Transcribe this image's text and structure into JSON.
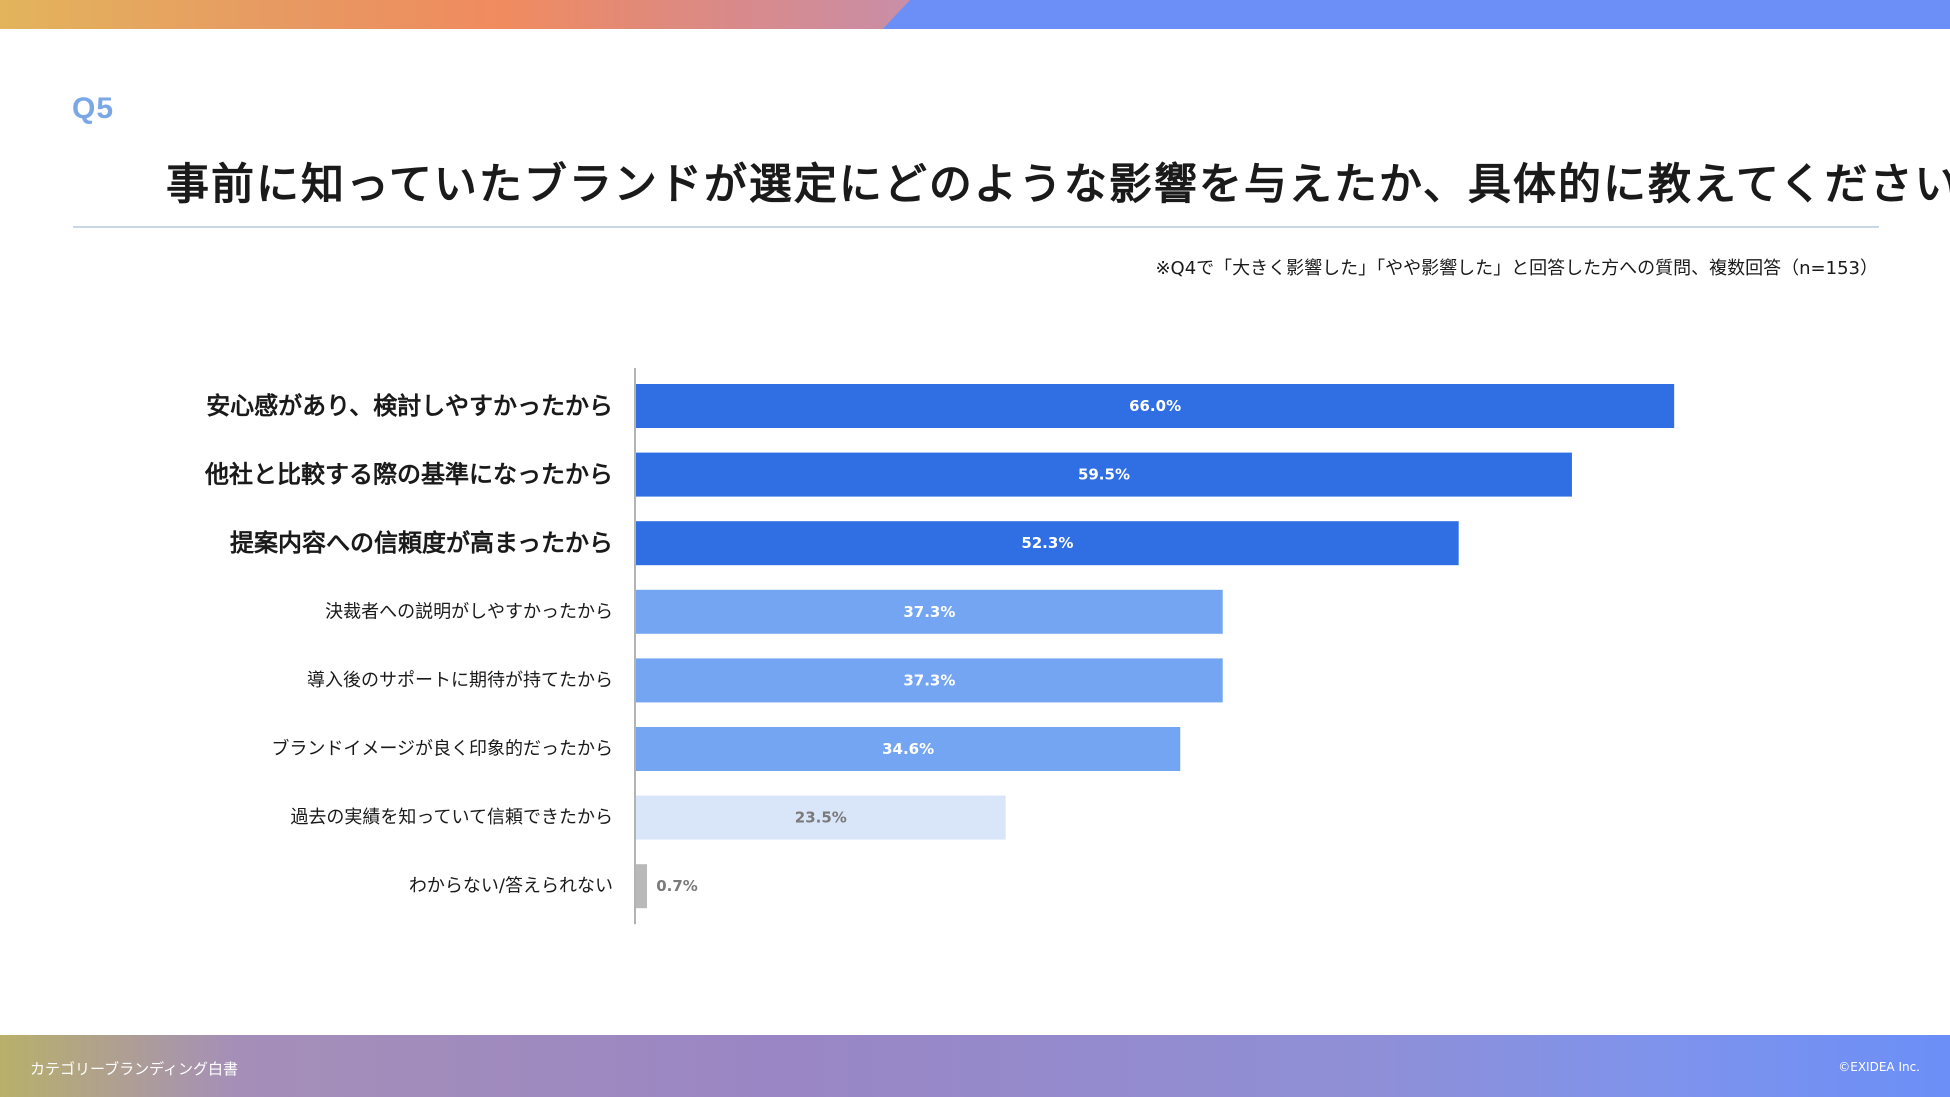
{
  "header": {
    "question_label": "Q5",
    "title": "事前に知っていたブランドが選定にどのような影響を与えたか、具体的に教えてください。",
    "note": "※Q4で「大きく影響した」「やや影響した」と回答した方への質問、複数回答（n=153）"
  },
  "footer": {
    "left": "カテゴリーブランディング白書",
    "right": "©EXIDEA Inc."
  },
  "chart_data": {
    "type": "bar",
    "orientation": "horizontal",
    "categories": [
      "安心感があり、検討しやすかったから",
      "他社と比較する際の基準になったから",
      "提案内容への信頼度が高まったから",
      "決裁者への説明がしやすかったから",
      "導入後のサポートに期待が持てたから",
      "ブランドイメージが良く印象的だったから",
      "過去の実績を知っていて信頼できたから",
      "わからない/答えられない"
    ],
    "values": [
      66.0,
      59.5,
      52.3,
      37.3,
      37.3,
      34.6,
      23.5,
      0.7
    ],
    "value_labels": [
      "66.0%",
      "59.5%",
      "52.3%",
      "37.3%",
      "37.3%",
      "34.6%",
      "23.5%",
      "0.7%"
    ],
    "emphasis": [
      "large",
      "large",
      "large",
      "normal",
      "normal",
      "normal",
      "normal",
      "normal"
    ],
    "colors": [
      "#2f6fe3",
      "#2f6fe3",
      "#2f6fe3",
      "#74a5f3",
      "#74a5f3",
      "#74a5f3",
      "#d9e5f8",
      "#b9b9b9"
    ],
    "label_colors": [
      "#ffffff",
      "#ffffff",
      "#ffffff",
      "#ffffff",
      "#ffffff",
      "#ffffff",
      "#7a7a7a",
      "#7a7a7a"
    ],
    "xlim": [
      0,
      100
    ],
    "unit": "%",
    "grid": false
  }
}
